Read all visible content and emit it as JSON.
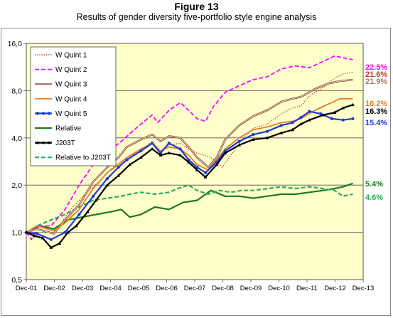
{
  "figure": {
    "number": "Figure 13",
    "caption": "Results of gender diversity five-portfolio style engine analysis"
  },
  "chart_data": {
    "type": "line",
    "scale": "log",
    "ylim": [
      0.5,
      16
    ],
    "y_ticks": [
      0.5,
      1,
      2,
      4,
      8,
      16
    ],
    "y_tick_labels": [
      "0,5",
      "1,0",
      "2,0",
      "4,0",
      "8,0",
      "16,0"
    ],
    "x_range": [
      2001.917,
      2013.917
    ],
    "x_ticks": [
      "Dec-01",
      "Dec-02",
      "Dec-03",
      "Dec-04",
      "Dec-05",
      "Dec-06",
      "Dec-07",
      "Dec-08",
      "Dec-09",
      "Dec-10",
      "Dec-11",
      "Dec-12",
      "Dec-13"
    ],
    "plot_background": "#ffffcc",
    "grid": true,
    "legend_position": "top-left",
    "series": [
      {
        "name": "W Quint 1",
        "color": "#c0392b",
        "style": "dotted",
        "marker": "none",
        "end_label": "21.6%",
        "points": [
          [
            2001.92,
            1.0
          ],
          [
            2002.3,
            1.05
          ],
          [
            2002.9,
            0.98
          ],
          [
            2003.5,
            1.4
          ],
          [
            2004.0,
            1.75
          ],
          [
            2004.5,
            2.1
          ],
          [
            2005.0,
            2.6
          ],
          [
            2005.5,
            3.0
          ],
          [
            2006.0,
            3.3
          ],
          [
            2006.4,
            3.8
          ],
          [
            2006.7,
            3.3
          ],
          [
            2007.0,
            3.6
          ],
          [
            2007.4,
            3.7
          ],
          [
            2007.7,
            3.4
          ],
          [
            2008.0,
            3.2
          ],
          [
            2008.5,
            3.0
          ],
          [
            2008.9,
            2.6
          ],
          [
            2009.2,
            3.1
          ],
          [
            2009.6,
            3.9
          ],
          [
            2010.0,
            4.6
          ],
          [
            2010.5,
            4.9
          ],
          [
            2011.0,
            5.7
          ],
          [
            2011.4,
            6.2
          ],
          [
            2011.7,
            6.4
          ],
          [
            2012.0,
            7.4
          ],
          [
            2012.5,
            8.4
          ],
          [
            2012.9,
            9.6
          ],
          [
            2013.2,
            10.2
          ],
          [
            2013.55,
            10.5
          ]
        ]
      },
      {
        "name": "W Quint 2",
        "color": "#ff00ff",
        "style": "dashed",
        "marker": "none",
        "end_label": "22.5%",
        "points": [
          [
            2001.92,
            1.0
          ],
          [
            2002.1,
            0.9
          ],
          [
            2002.3,
            1.1
          ],
          [
            2002.8,
            1.1
          ],
          [
            2003.3,
            1.4
          ],
          [
            2003.8,
            2.0
          ],
          [
            2004.3,
            2.7
          ],
          [
            2004.8,
            3.2
          ],
          [
            2005.3,
            3.8
          ],
          [
            2005.7,
            4.4
          ],
          [
            2006.0,
            4.9
          ],
          [
            2006.4,
            5.6
          ],
          [
            2006.6,
            5.0
          ],
          [
            2007.0,
            6.0
          ],
          [
            2007.4,
            6.7
          ],
          [
            2007.7,
            6.0
          ],
          [
            2008.0,
            5.3
          ],
          [
            2008.3,
            5.1
          ],
          [
            2008.6,
            6.4
          ],
          [
            2009.0,
            7.8
          ],
          [
            2009.5,
            8.6
          ],
          [
            2010.0,
            9.4
          ],
          [
            2010.5,
            9.8
          ],
          [
            2011.0,
            11.0
          ],
          [
            2011.5,
            11.5
          ],
          [
            2012.0,
            11.2
          ],
          [
            2012.5,
            12.3
          ],
          [
            2012.9,
            13.3
          ],
          [
            2013.55,
            12.6
          ]
        ]
      },
      {
        "name": "W Quint 3",
        "color": "#a67c68",
        "style": "solid",
        "marker": "none",
        "end_label": "21.9%",
        "points": [
          [
            2001.92,
            1.0
          ],
          [
            2002.3,
            1.05
          ],
          [
            2002.9,
            0.98
          ],
          [
            2003.3,
            1.2
          ],
          [
            2003.8,
            1.5
          ],
          [
            2004.3,
            2.1
          ],
          [
            2004.8,
            2.6
          ],
          [
            2005.2,
            3.0
          ],
          [
            2005.5,
            3.5
          ],
          [
            2006.0,
            3.9
          ],
          [
            2006.4,
            4.2
          ],
          [
            2006.7,
            3.8
          ],
          [
            2007.0,
            4.1
          ],
          [
            2007.4,
            4.0
          ],
          [
            2007.7,
            3.5
          ],
          [
            2008.0,
            3.0
          ],
          [
            2008.4,
            2.6
          ],
          [
            2008.7,
            3.0
          ],
          [
            2009.0,
            3.9
          ],
          [
            2009.5,
            4.8
          ],
          [
            2010.0,
            5.5
          ],
          [
            2010.5,
            6.0
          ],
          [
            2011.0,
            6.8
          ],
          [
            2011.4,
            7.1
          ],
          [
            2011.7,
            7.3
          ],
          [
            2012.2,
            8.2
          ],
          [
            2012.7,
            8.9
          ],
          [
            2013.1,
            9.2
          ],
          [
            2013.55,
            9.4
          ]
        ]
      },
      {
        "name": "W Quint 4",
        "color": "#e67e22",
        "style": "solid",
        "marker": "none",
        "end_label": "16.2%",
        "points": [
          [
            2001.92,
            1.0
          ],
          [
            2002.3,
            1.1
          ],
          [
            2002.9,
            1.02
          ],
          [
            2003.3,
            1.15
          ],
          [
            2003.8,
            1.4
          ],
          [
            2004.3,
            1.9
          ],
          [
            2004.8,
            2.4
          ],
          [
            2005.2,
            2.7
          ],
          [
            2005.5,
            3.0
          ],
          [
            2006.0,
            3.4
          ],
          [
            2006.4,
            3.7
          ],
          [
            2006.7,
            3.3
          ],
          [
            2007.0,
            3.5
          ],
          [
            2007.4,
            3.4
          ],
          [
            2007.7,
            3.1
          ],
          [
            2008.0,
            2.7
          ],
          [
            2008.4,
            2.5
          ],
          [
            2008.7,
            2.9
          ],
          [
            2009.0,
            3.4
          ],
          [
            2009.5,
            4.0
          ],
          [
            2010.0,
            4.5
          ],
          [
            2010.5,
            4.7
          ],
          [
            2011.0,
            5.0
          ],
          [
            2011.4,
            5.1
          ],
          [
            2011.7,
            5.3
          ],
          [
            2012.2,
            6.0
          ],
          [
            2012.7,
            6.6
          ],
          [
            2013.1,
            7.1
          ],
          [
            2013.55,
            7.1
          ]
        ]
      },
      {
        "name": "W Quint 5",
        "color": "#1f3adb",
        "style": "solid",
        "marker": "circle",
        "end_label": "15.4%",
        "points": [
          [
            2001.92,
            1.0
          ],
          [
            2002.3,
            0.98
          ],
          [
            2002.8,
            0.9
          ],
          [
            2003.3,
            1.0
          ],
          [
            2003.8,
            1.3
          ],
          [
            2004.3,
            1.7
          ],
          [
            2004.8,
            2.2
          ],
          [
            2005.2,
            2.6
          ],
          [
            2005.5,
            2.9
          ],
          [
            2006.0,
            3.3
          ],
          [
            2006.4,
            3.7
          ],
          [
            2006.7,
            3.2
          ],
          [
            2007.0,
            3.7
          ],
          [
            2007.4,
            3.4
          ],
          [
            2007.7,
            2.9
          ],
          [
            2008.0,
            2.6
          ],
          [
            2008.3,
            2.4
          ],
          [
            2008.7,
            2.8
          ],
          [
            2009.0,
            3.3
          ],
          [
            2009.5,
            3.8
          ],
          [
            2010.0,
            4.2
          ],
          [
            2010.5,
            4.4
          ],
          [
            2011.0,
            4.8
          ],
          [
            2011.4,
            5.0
          ],
          [
            2011.7,
            5.4
          ],
          [
            2012.0,
            5.9
          ],
          [
            2012.4,
            5.7
          ],
          [
            2012.8,
            5.3
          ],
          [
            2013.2,
            5.2
          ],
          [
            2013.55,
            5.3
          ]
        ]
      },
      {
        "name": "Relative",
        "color": "#1e7b1e",
        "style": "solid",
        "marker": "none",
        "end_label": "5.4%",
        "points": [
          [
            2001.92,
            1.0
          ],
          [
            2002.4,
            1.1
          ],
          [
            2002.9,
            1.05
          ],
          [
            2003.4,
            1.2
          ],
          [
            2003.9,
            1.25
          ],
          [
            2004.4,
            1.3
          ],
          [
            2004.9,
            1.35
          ],
          [
            2005.3,
            1.4
          ],
          [
            2005.6,
            1.25
          ],
          [
            2006.0,
            1.3
          ],
          [
            2006.5,
            1.45
          ],
          [
            2007.0,
            1.4
          ],
          [
            2007.5,
            1.55
          ],
          [
            2008.0,
            1.6
          ],
          [
            2008.5,
            1.85
          ],
          [
            2009.0,
            1.7
          ],
          [
            2009.5,
            1.7
          ],
          [
            2010.0,
            1.65
          ],
          [
            2010.5,
            1.7
          ],
          [
            2011.0,
            1.75
          ],
          [
            2011.5,
            1.75
          ],
          [
            2012.0,
            1.8
          ],
          [
            2012.5,
            1.85
          ],
          [
            2012.9,
            1.9
          ],
          [
            2013.2,
            1.95
          ],
          [
            2013.55,
            2.05
          ]
        ]
      },
      {
        "name": "J203T",
        "color": "#000000",
        "style": "solid",
        "marker": "triangle",
        "end_label": "16.3%",
        "points": [
          [
            2001.92,
            1.0
          ],
          [
            2002.2,
            0.95
          ],
          [
            2002.5,
            0.92
          ],
          [
            2002.8,
            0.8
          ],
          [
            2003.1,
            0.85
          ],
          [
            2003.4,
            1.0
          ],
          [
            2003.7,
            1.1
          ],
          [
            2004.1,
            1.35
          ],
          [
            2004.4,
            1.6
          ],
          [
            2004.8,
            2.0
          ],
          [
            2005.2,
            2.3
          ],
          [
            2005.6,
            2.7
          ],
          [
            2006.0,
            3.0
          ],
          [
            2006.4,
            3.4
          ],
          [
            2006.7,
            3.1
          ],
          [
            2007.0,
            3.2
          ],
          [
            2007.4,
            3.1
          ],
          [
            2007.7,
            2.8
          ],
          [
            2008.0,
            2.5
          ],
          [
            2008.3,
            2.25
          ],
          [
            2008.7,
            2.7
          ],
          [
            2009.0,
            3.2
          ],
          [
            2009.5,
            3.6
          ],
          [
            2010.0,
            3.9
          ],
          [
            2010.5,
            4.0
          ],
          [
            2011.0,
            4.3
          ],
          [
            2011.4,
            4.5
          ],
          [
            2011.7,
            4.9
          ],
          [
            2012.0,
            5.2
          ],
          [
            2012.5,
            5.6
          ],
          [
            2012.9,
            5.8
          ],
          [
            2013.2,
            6.2
          ],
          [
            2013.55,
            6.5
          ]
        ]
      },
      {
        "name": "Relative to J203T",
        "color": "#27ae60",
        "style": "dashed",
        "marker": "none",
        "end_label": "4.6%",
        "points": [
          [
            2001.92,
            1.0
          ],
          [
            2002.3,
            1.1
          ],
          [
            2002.8,
            1.2
          ],
          [
            2003.3,
            1.3
          ],
          [
            2003.8,
            1.45
          ],
          [
            2004.3,
            1.6
          ],
          [
            2004.8,
            1.65
          ],
          [
            2005.3,
            1.7
          ],
          [
            2005.6,
            1.75
          ],
          [
            2006.0,
            1.8
          ],
          [
            2006.5,
            1.75
          ],
          [
            2007.0,
            1.8
          ],
          [
            2007.3,
            1.9
          ],
          [
            2007.7,
            2.0
          ],
          [
            2008.0,
            1.85
          ],
          [
            2008.4,
            1.75
          ],
          [
            2008.8,
            1.85
          ],
          [
            2009.2,
            1.8
          ],
          [
            2009.6,
            1.85
          ],
          [
            2010.0,
            1.85
          ],
          [
            2010.5,
            1.9
          ],
          [
            2011.0,
            1.95
          ],
          [
            2011.5,
            1.9
          ],
          [
            2012.0,
            1.95
          ],
          [
            2012.5,
            1.9
          ],
          [
            2012.9,
            1.85
          ],
          [
            2013.2,
            1.7
          ],
          [
            2013.55,
            1.75
          ]
        ]
      }
    ]
  }
}
